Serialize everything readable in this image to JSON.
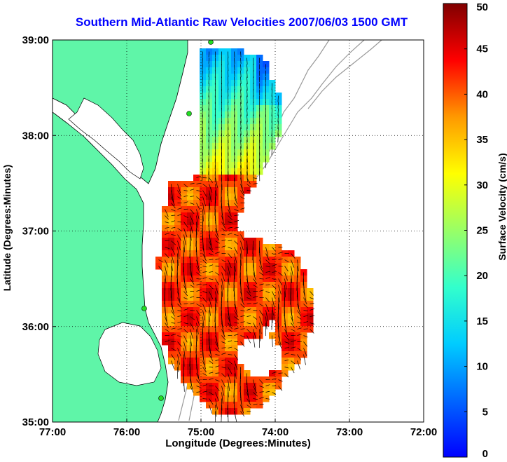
{
  "title": "Southern Mid-Atlantic Raw Velocities 2007/06/03 1500 GMT",
  "chart_data": {
    "type": "map",
    "xlabel": "Longitude (Degrees:Minutes)",
    "ylabel": "Latitude (Degrees:Minutes)",
    "x_ticks": [
      "77:00",
      "76:00",
      "75:00",
      "74:00",
      "73:00",
      "72:00"
    ],
    "y_ticks": [
      "39:00",
      "38:00",
      "37:00",
      "36:00",
      "35:00"
    ],
    "xlim": [
      -77,
      -72
    ],
    "ylim": [
      35,
      39
    ],
    "grid": true,
    "colorbar": {
      "label": "Surface Velocity (cm/s)",
      "ticks": [
        "50",
        "45",
        "40",
        "35",
        "30",
        "25",
        "20",
        "15",
        "10",
        "5",
        "0"
      ],
      "range": [
        0,
        50
      ]
    },
    "colors": {
      "land": "#5ff5a8",
      "water": "#ffffff",
      "title": "#0000ff",
      "station": "#22dd22"
    }
  }
}
